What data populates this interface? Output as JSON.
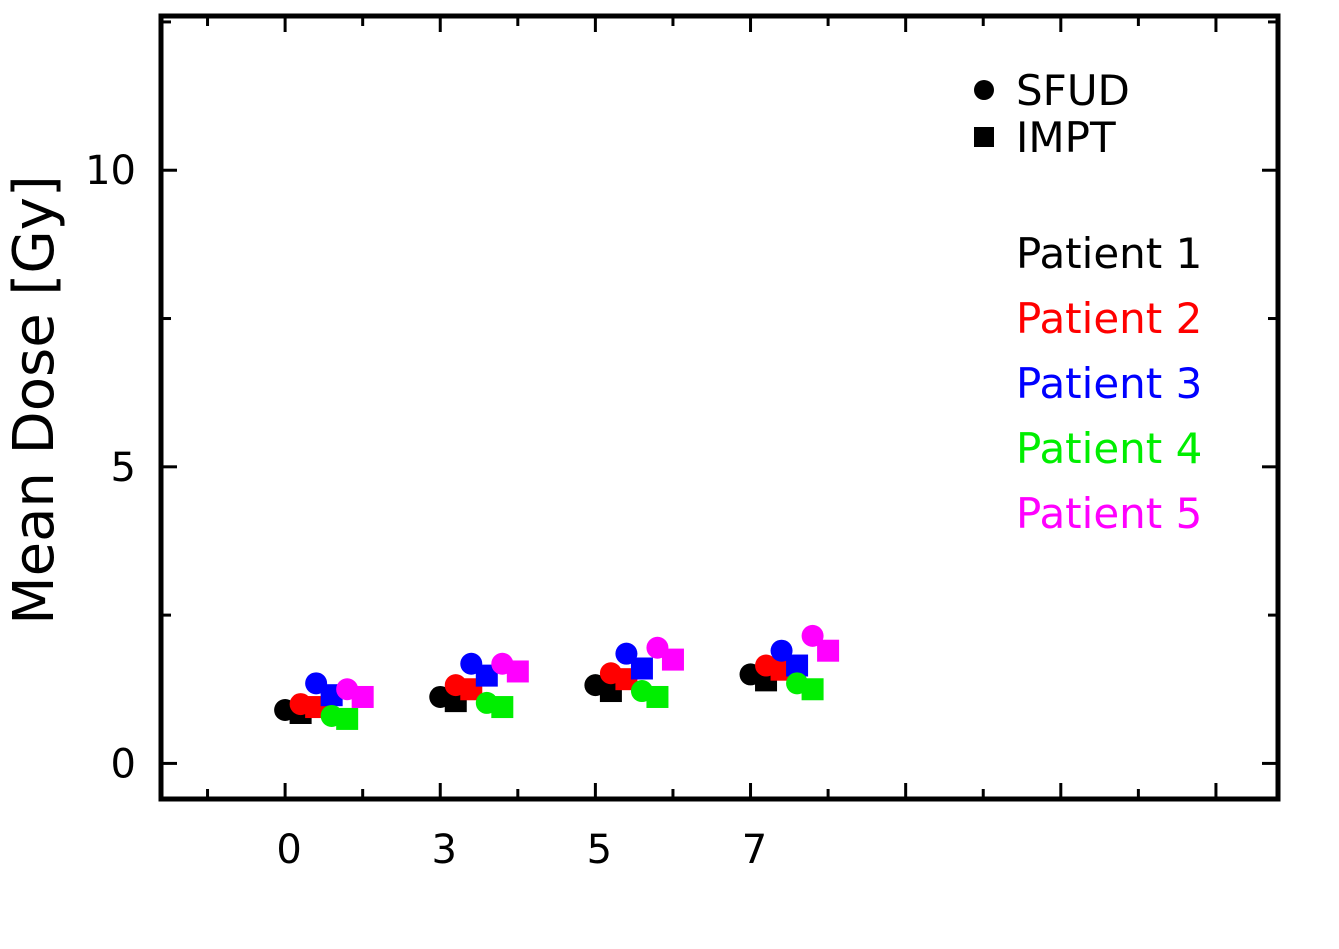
{
  "chart_data": {
    "type": "scatter",
    "ylabel": "Mean Dose [Gy]",
    "xlabel": "",
    "ylim": [
      -0.6,
      12.6
    ],
    "xlim": [
      -1.6,
      12.8
    ],
    "x_ticks": [
      0,
      3,
      5,
      7
    ],
    "x_tick_labels": [
      "0",
      "3",
      "5",
      "7"
    ],
    "y_ticks": [
      0,
      5,
      10
    ],
    "y_tick_labels": [
      "0",
      "5",
      "10"
    ],
    "grid": false,
    "legend_placement": "top-right",
    "marker_legend": [
      {
        "marker": "circle",
        "label": "SFUD"
      },
      {
        "marker": "square",
        "label": "IMPT"
      }
    ],
    "series": [
      {
        "name": "Patient 1",
        "color": "#000000",
        "sfud": [
          0.9,
          1.12,
          1.32,
          1.5
        ],
        "impt": [
          0.85,
          1.05,
          1.22,
          1.4
        ]
      },
      {
        "name": "Patient 2",
        "color": "#ff0000",
        "sfud": [
          1.0,
          1.32,
          1.52,
          1.65
        ],
        "impt": [
          0.95,
          1.25,
          1.42,
          1.58
        ]
      },
      {
        "name": "Patient 3",
        "color": "#0000ff",
        "sfud": [
          1.35,
          1.68,
          1.85,
          1.9
        ],
        "impt": [
          1.15,
          1.48,
          1.6,
          1.65
        ]
      },
      {
        "name": "Patient 4",
        "color": "#00ee00",
        "sfud": [
          0.8,
          1.02,
          1.22,
          1.35
        ],
        "impt": [
          0.75,
          0.95,
          1.12,
          1.25
        ]
      },
      {
        "name": "Patient 5",
        "color": "#ff00ff",
        "sfud": [
          1.25,
          1.68,
          1.95,
          2.15
        ],
        "impt": [
          1.12,
          1.55,
          1.75,
          1.9
        ]
      }
    ]
  }
}
